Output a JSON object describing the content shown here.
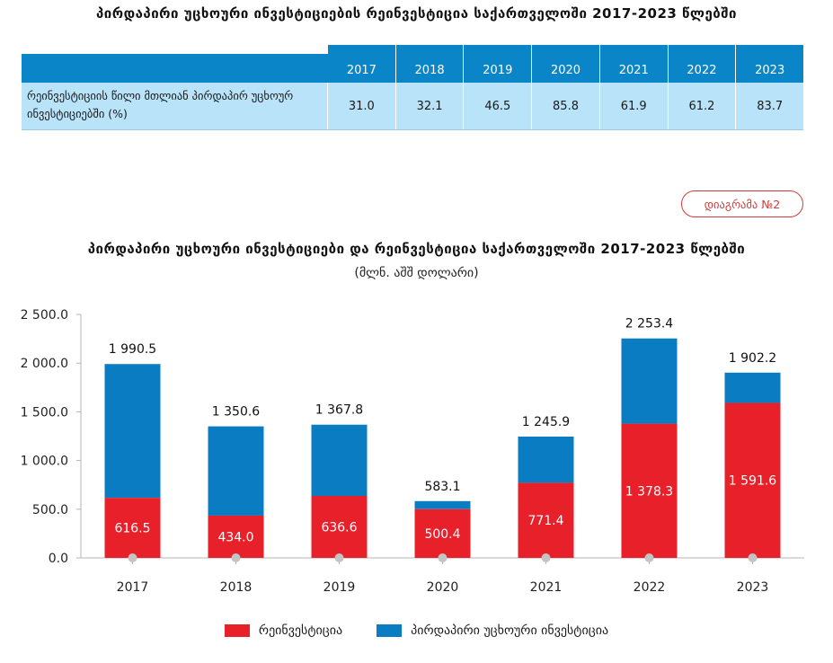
{
  "table": {
    "title": "პირდაპირი უცხოური ინვესტიციების რეინვესტიცია საქართველოში 2017-2023 წლებში",
    "years": [
      "2017",
      "2018",
      "2019",
      "2020",
      "2021",
      "2022",
      "2023"
    ],
    "row_label": "რეინვესტიციის წილი მთლიან პირდაპირ უცხოურ ინვესტიციებში (%)",
    "row_values": [
      "31.0",
      "32.1",
      "46.5",
      "85.8",
      "61.9",
      "61.2",
      "83.7"
    ]
  },
  "badge": "დიაგრამა №2",
  "chart_data": {
    "type": "bar",
    "stacked": true,
    "title": "პირდაპირი უცხოური ინვესტიციები და რეინვესტიცია საქართველოში 2017-2023 წლებში",
    "subtitle": "(მლნ. აშშ დოლარი)",
    "categories": [
      "2017",
      "2018",
      "2019",
      "2020",
      "2021",
      "2022",
      "2023"
    ],
    "series": [
      {
        "name": "რეინვესტიცია",
        "color": "#e8202a",
        "values": [
          616.5,
          434.0,
          636.6,
          500.4,
          771.4,
          1378.3,
          1591.6
        ],
        "labels": [
          "616.5",
          "434.0",
          "636.6",
          "500.4",
          "771.4",
          "1 378.3",
          "1 591.6"
        ]
      },
      {
        "name": "პირდაპირი უცხოური ინვესტიცია",
        "color": "#0a7cc2",
        "totals": [
          1990.5,
          1350.6,
          1367.8,
          583.1,
          1245.9,
          2253.4,
          1902.2
        ],
        "total_labels": [
          "1 990.5",
          "1 350.6",
          "1 367.8",
          "583.1",
          "1 245.9",
          "2 253.4",
          "1 902.2"
        ]
      }
    ],
    "ylim": [
      0,
      2500
    ],
    "yticks": [
      0,
      500,
      1000,
      1500,
      2000,
      2500
    ],
    "ytick_labels": [
      "0.0",
      "500.0",
      "1 000.0",
      "1 500.0",
      "2 000.0",
      "2 500.0"
    ],
    "grid": false,
    "legend": "bottom"
  }
}
